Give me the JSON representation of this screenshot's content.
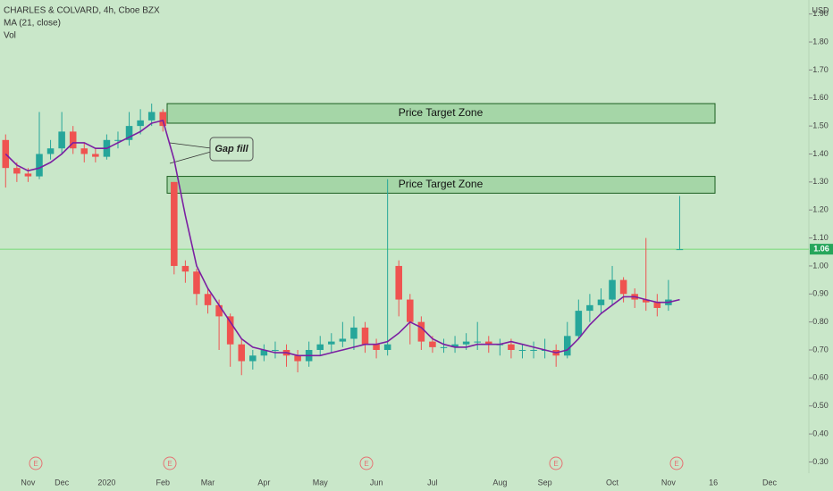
{
  "chart_data": {
    "type": "candlestick",
    "title": "CHARLES & COLVARD, 4h, Cboe BZX",
    "indicator": "MA (21, close)",
    "volume_label": "Vol",
    "currency": "USD",
    "categories": [
      null,
      null,
      "Nov",
      null,
      null,
      "Dec",
      null,
      null,
      null,
      "2020",
      null,
      null,
      null,
      null,
      "Feb",
      null,
      null,
      null,
      "Mar",
      null,
      null,
      null,
      null,
      "Apr",
      null,
      null,
      null,
      null,
      "May",
      null,
      null,
      null,
      null,
      "Jun",
      null,
      null,
      null,
      null,
      "Jul",
      null,
      null,
      null,
      null,
      null,
      "Aug",
      null,
      null,
      null,
      "Sep",
      null,
      null,
      null,
      null,
      null,
      "Oct",
      null,
      null,
      null,
      null,
      "Nov",
      null,
      null,
      null,
      "16",
      null,
      null,
      null,
      null,
      "Dec",
      null,
      null,
      null
    ],
    "open": [
      1.45,
      1.35,
      1.33,
      1.32,
      1.4,
      1.42,
      1.48,
      1.42,
      1.4,
      1.39,
      1.45,
      1.45,
      1.5,
      1.52,
      1.55,
      1.3,
      1.0,
      0.98,
      0.9,
      0.86,
      0.82,
      0.72,
      0.66,
      0.68,
      0.7,
      0.7,
      0.68,
      0.66,
      0.7,
      0.72,
      0.73,
      0.74,
      0.78,
      0.72,
      0.7,
      1.0,
      0.88,
      0.8,
      0.73,
      0.71,
      0.71,
      0.72,
      0.73,
      0.73,
      0.72,
      0.72,
      0.7,
      0.7,
      0.7,
      0.7,
      0.68,
      0.75,
      0.84,
      0.86,
      0.88,
      0.95,
      0.9,
      0.88,
      0.87,
      0.86,
      1.06,
      null,
      null,
      null,
      null,
      null,
      null,
      null,
      null,
      null,
      null,
      null
    ],
    "high": [
      1.47,
      1.37,
      1.35,
      1.55,
      1.45,
      1.55,
      1.5,
      1.44,
      1.42,
      1.47,
      1.48,
      1.55,
      1.56,
      1.58,
      1.56,
      1.3,
      1.02,
      0.99,
      0.92,
      0.88,
      0.83,
      0.74,
      0.7,
      0.72,
      0.73,
      0.72,
      0.7,
      0.73,
      0.75,
      0.76,
      0.8,
      0.82,
      0.8,
      0.74,
      1.31,
      1.02,
      0.9,
      0.82,
      0.75,
      0.74,
      0.75,
      0.76,
      0.8,
      0.75,
      0.74,
      0.74,
      0.72,
      0.73,
      0.74,
      0.72,
      0.8,
      0.88,
      0.9,
      0.92,
      1.0,
      0.96,
      0.92,
      1.1,
      0.9,
      0.95,
      1.25,
      null,
      null,
      null,
      null,
      null,
      null,
      null,
      null,
      null,
      null,
      null
    ],
    "low": [
      1.28,
      1.3,
      1.3,
      1.31,
      1.38,
      1.4,
      1.4,
      1.37,
      1.37,
      1.38,
      1.42,
      1.43,
      1.47,
      1.5,
      1.48,
      0.97,
      0.94,
      0.86,
      0.83,
      0.7,
      0.64,
      0.61,
      0.63,
      0.66,
      0.67,
      0.64,
      0.62,
      0.64,
      0.68,
      0.69,
      0.71,
      0.7,
      0.69,
      0.67,
      0.68,
      0.82,
      0.72,
      0.7,
      0.69,
      0.69,
      0.69,
      0.7,
      0.7,
      0.69,
      0.68,
      0.67,
      0.67,
      0.67,
      0.67,
      0.64,
      0.67,
      0.74,
      0.8,
      0.83,
      0.86,
      0.87,
      0.85,
      0.84,
      0.82,
      0.84,
      1.06,
      null,
      null,
      null,
      null,
      null,
      null,
      null,
      null,
      null,
      null,
      null
    ],
    "close": [
      1.35,
      1.33,
      1.32,
      1.4,
      1.42,
      1.48,
      1.42,
      1.4,
      1.39,
      1.45,
      1.45,
      1.5,
      1.52,
      1.55,
      1.5,
      1.0,
      0.98,
      0.9,
      0.86,
      0.82,
      0.72,
      0.66,
      0.68,
      0.7,
      0.7,
      0.68,
      0.66,
      0.7,
      0.72,
      0.73,
      0.74,
      0.78,
      0.72,
      0.7,
      0.72,
      0.88,
      0.8,
      0.73,
      0.71,
      0.71,
      0.72,
      0.73,
      0.73,
      0.72,
      0.72,
      0.7,
      0.7,
      0.7,
      0.7,
      0.68,
      0.75,
      0.84,
      0.86,
      0.88,
      0.95,
      0.9,
      0.88,
      0.87,
      0.85,
      0.88,
      1.06,
      null,
      null,
      null,
      null,
      null,
      null,
      null,
      null,
      null,
      null,
      null
    ],
    "ma": [
      1.4,
      1.36,
      1.34,
      1.35,
      1.37,
      1.4,
      1.44,
      1.44,
      1.42,
      1.42,
      1.44,
      1.46,
      1.48,
      1.51,
      1.52,
      1.38,
      1.18,
      1.0,
      0.92,
      0.86,
      0.8,
      0.74,
      0.71,
      0.7,
      0.69,
      0.69,
      0.68,
      0.68,
      0.68,
      0.69,
      0.7,
      0.71,
      0.72,
      0.72,
      0.73,
      0.76,
      0.8,
      0.78,
      0.74,
      0.72,
      0.71,
      0.71,
      0.72,
      0.72,
      0.72,
      0.73,
      0.72,
      0.71,
      0.7,
      0.69,
      0.7,
      0.74,
      0.79,
      0.83,
      0.86,
      0.89,
      0.89,
      0.88,
      0.87,
      0.87,
      0.88,
      null,
      null,
      null,
      null,
      null,
      null,
      null,
      null,
      null,
      null,
      null
    ],
    "up_color": "#26a69a",
    "down_color": "#ef5350",
    "ma_color": "#7b1fa2",
    "ylim": [
      0.26,
      1.95
    ],
    "yticks": [
      {
        "value": 0.3,
        "label": "0.30"
      },
      {
        "value": 0.4,
        "label": "0.40"
      },
      {
        "value": 0.5,
        "label": "0.50"
      },
      {
        "value": 0.6,
        "label": "0.60"
      },
      {
        "value": 0.7,
        "label": "0.70"
      },
      {
        "value": 0.8,
        "label": "0.80"
      },
      {
        "value": 0.9,
        "label": "0.90"
      },
      {
        "value": 1.0,
        "label": "1.00"
      },
      {
        "value": 1.1,
        "label": "1.10"
      },
      {
        "value": 1.2,
        "label": "1.20"
      },
      {
        "value": 1.3,
        "label": "1.30"
      },
      {
        "value": 1.4,
        "label": "1.40"
      },
      {
        "value": 1.5,
        "label": "1.50"
      },
      {
        "value": 1.6,
        "label": "1.60"
      },
      {
        "value": 1.7,
        "label": "1.70"
      },
      {
        "value": 1.8,
        "label": "1.80"
      },
      {
        "value": 1.9,
        "label": "1.90"
      }
    ],
    "last_price": {
      "value": 1.06,
      "label": "1.06"
    },
    "zones": [
      {
        "label": "Price Target Zone",
        "top": 1.58,
        "bottom": 1.51
      },
      {
        "label": "Price Target Zone",
        "top": 1.32,
        "bottom": 1.26
      }
    ],
    "annotation": "Gap fill",
    "earnings_markers": [
      "E",
      "E",
      "E",
      "E",
      "E"
    ]
  }
}
